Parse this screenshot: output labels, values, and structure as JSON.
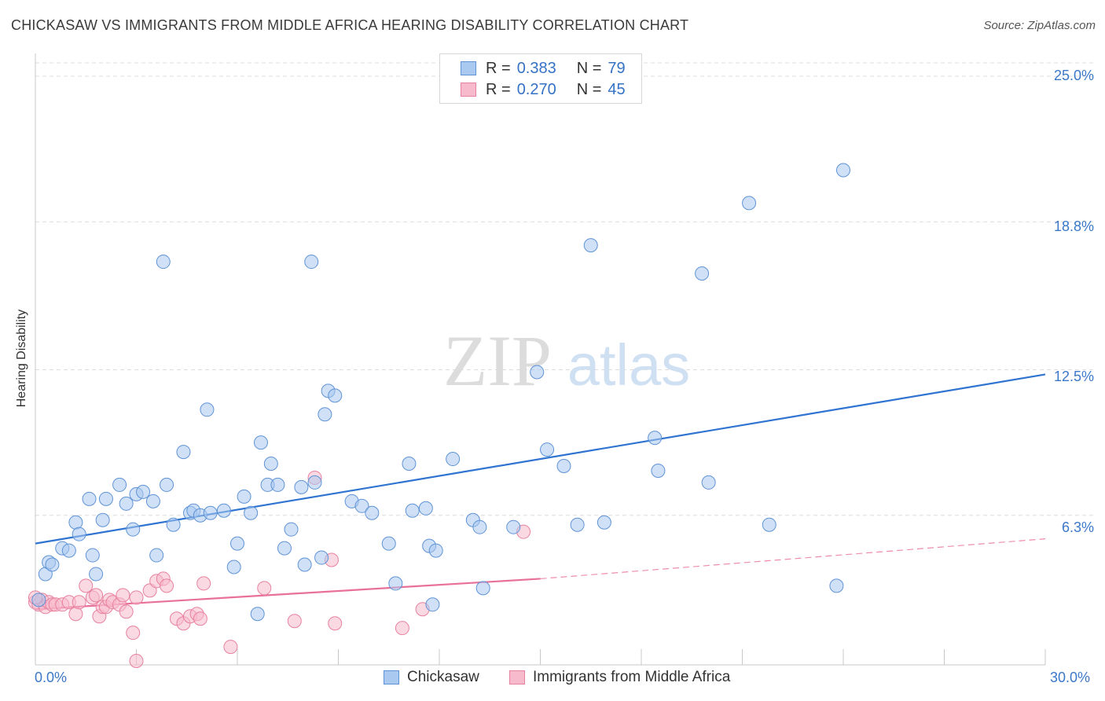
{
  "title": "CHICKASAW VS IMMIGRANTS FROM MIDDLE AFRICA HEARING DISABILITY CORRELATION CHART",
  "source": "Source: ZipAtlas.com",
  "watermark": {
    "zip": "ZIP",
    "atlas": "atlas"
  },
  "legend": {
    "rows": [
      {
        "r_label": "R =",
        "r_value": "0.383",
        "n_label": "N =",
        "n_value": "79"
      },
      {
        "r_label": "R =",
        "r_value": "0.270",
        "n_label": "N =",
        "n_value": "45"
      }
    ]
  },
  "bottom_legend": [
    "Chickasaw",
    "Immigrants from Middle Africa"
  ],
  "colors": {
    "blue_fill": "#a9c9f0",
    "blue_stroke": "#5f93d6",
    "blue_line": "#2f74d0",
    "pink_fill": "#f7b9cc",
    "pink_stroke": "#e8819f",
    "pink_line": "#e8709a",
    "tick_text": "#3b78c9",
    "grid": "#dcdcdc"
  },
  "chart_data": {
    "type": "scatter",
    "xlabel": "",
    "ylabel": "Hearing Disability",
    "xlim": [
      0,
      30
    ],
    "ylim": [
      0,
      26
    ],
    "x_tick_labels": [
      "0.0%",
      "30.0%"
    ],
    "y_ticks": [
      6.3,
      12.5,
      18.8,
      25.0
    ],
    "y_tick_labels": [
      "6.3%",
      "12.5%",
      "18.8%",
      "25.0%"
    ],
    "grid": "horizontal dashed",
    "legend_position": "top-center",
    "series": [
      {
        "name": "Chickasaw",
        "trend": {
          "x": [
            0,
            30
          ],
          "y": [
            5.1,
            12.3
          ]
        },
        "points": [
          [
            0.1,
            2.7
          ],
          [
            0.3,
            3.8
          ],
          [
            0.4,
            4.3
          ],
          [
            0.5,
            4.2
          ],
          [
            0.8,
            4.9
          ],
          [
            1.0,
            4.8
          ],
          [
            1.2,
            6.0
          ],
          [
            1.3,
            5.5
          ],
          [
            1.6,
            7.0
          ],
          [
            1.7,
            4.6
          ],
          [
            1.8,
            3.8
          ],
          [
            2.0,
            6.1
          ],
          [
            2.1,
            7.0
          ],
          [
            2.5,
            7.6
          ],
          [
            2.7,
            6.8
          ],
          [
            2.9,
            5.7
          ],
          [
            3.0,
            7.2
          ],
          [
            3.2,
            7.3
          ],
          [
            3.5,
            6.9
          ],
          [
            3.6,
            4.6
          ],
          [
            3.8,
            17.1
          ],
          [
            3.9,
            7.6
          ],
          [
            4.1,
            5.9
          ],
          [
            4.4,
            9.0
          ],
          [
            4.6,
            6.4
          ],
          [
            4.7,
            6.5
          ],
          [
            4.9,
            6.3
          ],
          [
            5.1,
            10.8
          ],
          [
            5.2,
            6.4
          ],
          [
            5.6,
            6.5
          ],
          [
            5.9,
            4.1
          ],
          [
            6.0,
            5.1
          ],
          [
            6.2,
            7.1
          ],
          [
            6.4,
            6.4
          ],
          [
            6.6,
            2.1
          ],
          [
            6.7,
            9.4
          ],
          [
            6.9,
            7.6
          ],
          [
            7.0,
            8.5
          ],
          [
            7.2,
            7.6
          ],
          [
            7.4,
            4.9
          ],
          [
            7.6,
            5.7
          ],
          [
            7.9,
            7.5
          ],
          [
            8.0,
            4.2
          ],
          [
            8.2,
            17.1
          ],
          [
            8.3,
            7.7
          ],
          [
            8.5,
            4.5
          ],
          [
            8.6,
            10.6
          ],
          [
            8.7,
            11.6
          ],
          [
            8.9,
            11.4
          ],
          [
            9.4,
            6.9
          ],
          [
            9.7,
            6.7
          ],
          [
            10.0,
            6.4
          ],
          [
            10.5,
            5.1
          ],
          [
            10.7,
            3.4
          ],
          [
            11.1,
            8.5
          ],
          [
            11.2,
            6.5
          ],
          [
            11.6,
            6.6
          ],
          [
            11.7,
            5.0
          ],
          [
            11.8,
            2.5
          ],
          [
            11.9,
            4.8
          ],
          [
            12.4,
            8.7
          ],
          [
            13.0,
            6.1
          ],
          [
            13.2,
            5.8
          ],
          [
            13.3,
            3.2
          ],
          [
            14.2,
            5.8
          ],
          [
            14.9,
            12.4
          ],
          [
            15.2,
            9.1
          ],
          [
            15.7,
            8.4
          ],
          [
            16.1,
            5.9
          ],
          [
            16.5,
            17.8
          ],
          [
            16.9,
            6.0
          ],
          [
            18.4,
            9.6
          ],
          [
            18.5,
            8.2
          ],
          [
            19.8,
            16.6
          ],
          [
            20.0,
            7.7
          ],
          [
            21.2,
            19.6
          ],
          [
            21.8,
            5.9
          ],
          [
            23.8,
            3.3
          ],
          [
            24.0,
            21.0
          ]
        ]
      },
      {
        "name": "Immigrants from Middle Africa",
        "trend": {
          "x": [
            0,
            15
          ],
          "y": [
            2.3,
            3.6
          ],
          "dashed_to": [
            30,
            5.3
          ]
        },
        "points": [
          [
            0.0,
            2.6
          ],
          [
            0.1,
            2.5
          ],
          [
            0.2,
            2.7
          ],
          [
            0.3,
            2.4
          ],
          [
            0.4,
            2.6
          ],
          [
            0.5,
            2.5
          ],
          [
            0.6,
            2.5
          ],
          [
            0.8,
            2.5
          ],
          [
            1.0,
            2.6
          ],
          [
            1.2,
            2.1
          ],
          [
            1.3,
            2.6
          ],
          [
            1.5,
            3.3
          ],
          [
            1.7,
            2.8
          ],
          [
            1.8,
            2.9
          ],
          [
            1.9,
            2.0
          ],
          [
            2.0,
            2.4
          ],
          [
            2.1,
            2.4
          ],
          [
            2.2,
            2.7
          ],
          [
            2.3,
            2.6
          ],
          [
            2.5,
            2.5
          ],
          [
            2.6,
            2.9
          ],
          [
            2.7,
            2.2
          ],
          [
            2.9,
            1.3
          ],
          [
            3.0,
            2.8
          ],
          [
            3.0,
            0.1
          ],
          [
            3.4,
            3.1
          ],
          [
            3.6,
            3.5
          ],
          [
            3.8,
            3.6
          ],
          [
            3.9,
            3.3
          ],
          [
            4.2,
            1.9
          ],
          [
            4.4,
            1.7
          ],
          [
            4.6,
            2.0
          ],
          [
            4.8,
            2.1
          ],
          [
            4.9,
            1.9
          ],
          [
            5.0,
            3.4
          ],
          [
            5.8,
            0.7
          ],
          [
            6.8,
            3.2
          ],
          [
            7.7,
            1.8
          ],
          [
            8.3,
            7.9
          ],
          [
            8.8,
            4.4
          ],
          [
            8.9,
            1.7
          ],
          [
            10.9,
            1.5
          ],
          [
            11.5,
            2.3
          ],
          [
            14.5,
            5.6
          ],
          [
            0.0,
            2.8
          ]
        ]
      }
    ]
  }
}
